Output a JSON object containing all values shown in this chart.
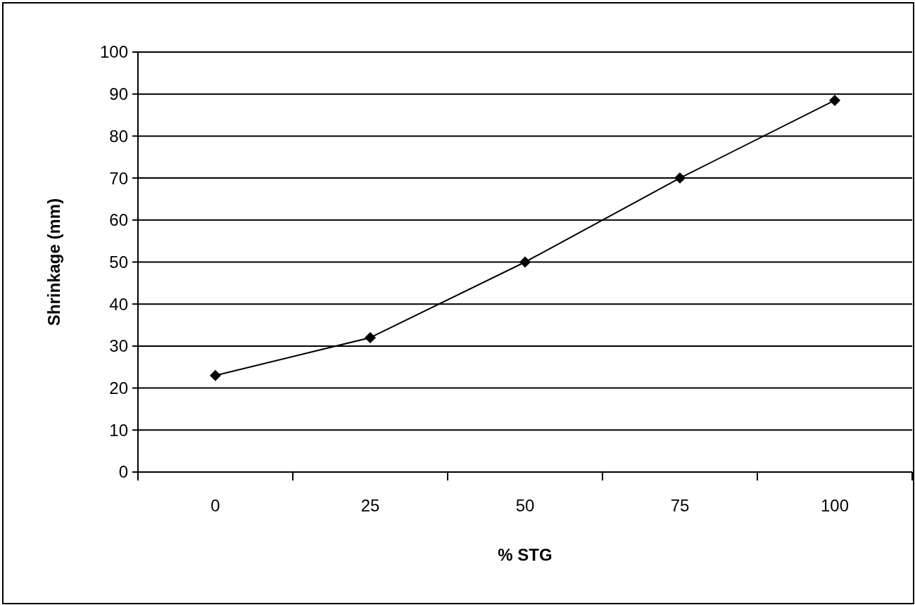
{
  "chart_data": {
    "type": "line",
    "xlabel": "% STG",
    "ylabel": "Shrinkage (mm)",
    "categories": [
      "0",
      "25",
      "50",
      "75",
      "100"
    ],
    "series": [
      {
        "color": "#000000",
        "values": [
          23,
          32,
          50,
          70,
          88.5
        ]
      }
    ],
    "ylim": [
      0,
      100
    ],
    "yticks": [
      0,
      10,
      20,
      30,
      40,
      50,
      60,
      70,
      80,
      90,
      100
    ],
    "grid": "y",
    "marker": "diamond",
    "line_style": "solid"
  }
}
